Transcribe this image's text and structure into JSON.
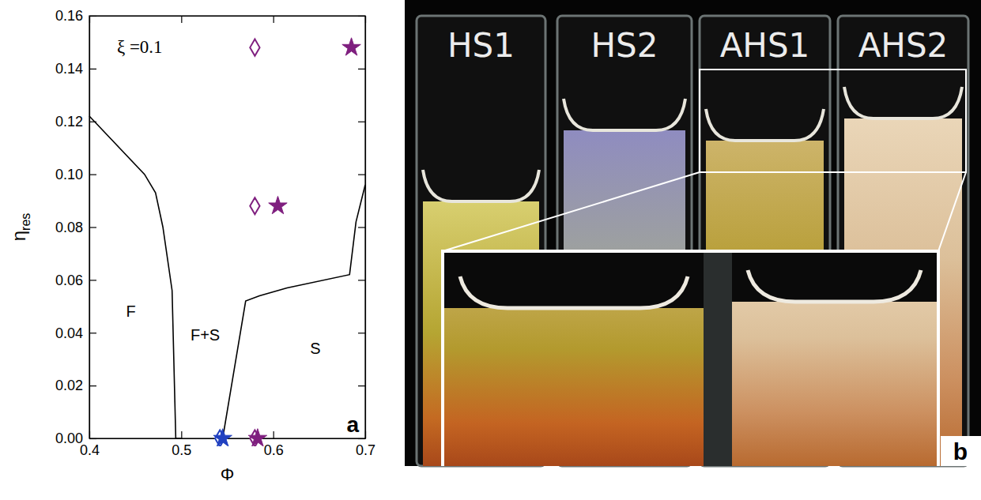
{
  "chart_data": {
    "type": "scatter",
    "panel_label": "a",
    "xlabel": "Φ",
    "ylabel": "ηres",
    "xlim": [
      0.4,
      0.7
    ],
    "ylim": [
      0,
      0.16
    ],
    "xticks": [
      0.4,
      0.5,
      0.6,
      0.7
    ],
    "yticks": [
      {
        "value": 0,
        "label": "0.00"
      },
      {
        "value": 0.02,
        "label": "0.02"
      },
      {
        "value": 0.04,
        "label": "0.04"
      },
      {
        "value": 0.06,
        "label": "0.06"
      },
      {
        "value": 0.08,
        "label": "0.08"
      },
      {
        "value": 0.1,
        "label": "0.10"
      },
      {
        "value": 0.12,
        "label": "0.12"
      },
      {
        "value": 0.14,
        "label": "0.14"
      },
      {
        "value": 0.16,
        "label": "0.16"
      }
    ],
    "annotations": [
      {
        "text": "ξ =0.1",
        "x": 0.43,
        "y": 0.146
      },
      {
        "text": "F",
        "x": 0.44,
        "y": 0.046
      },
      {
        "text": "F+S",
        "x": 0.51,
        "y": 0.037
      },
      {
        "text": "S",
        "x": 0.64,
        "y": 0.032
      }
    ],
    "series": [
      {
        "type": "line",
        "color": "#000000",
        "line_style": "solid",
        "x": [
          0.4,
          0.46,
          0.472,
          0.48,
          0.49,
          0.494,
          0.5
        ],
        "values": [
          0.122,
          0.1,
          0.093,
          0.08,
          0.056,
          0.0,
          0.0
        ]
      },
      {
        "type": "line",
        "color": "#000000",
        "line_style": "solid",
        "x": [
          0.545,
          0.57,
          0.585,
          0.615,
          0.683,
          0.69,
          0.7
        ],
        "values": [
          0.0,
          0.052,
          0.054,
          0.057,
          0.062,
          0.082,
          0.096
        ]
      },
      {
        "type": "scatter",
        "color": "#7f1f7f",
        "marker": "diamond-open",
        "x": [
          0.58,
          0.58,
          0.58
        ],
        "values": [
          0.148,
          0.088,
          0.0
        ]
      },
      {
        "type": "scatter",
        "color": "#7f1f7f",
        "marker": "star",
        "x": [
          0.685,
          0.605,
          0.583
        ],
        "values": [
          0.148,
          0.088,
          0.0
        ]
      },
      {
        "type": "scatter",
        "color": "#2040c0",
        "marker": "diamond-open",
        "x": [
          0.542
        ],
        "values": [
          0.0
        ]
      },
      {
        "type": "scatter",
        "color": "#2040c0",
        "marker": "star",
        "x": [
          0.545
        ],
        "values": [
          0.0
        ]
      }
    ]
  },
  "panel_b": {
    "panel_label": "b",
    "samples": [
      "HS1",
      "HS2",
      "AHS1",
      "AHS2"
    ]
  }
}
